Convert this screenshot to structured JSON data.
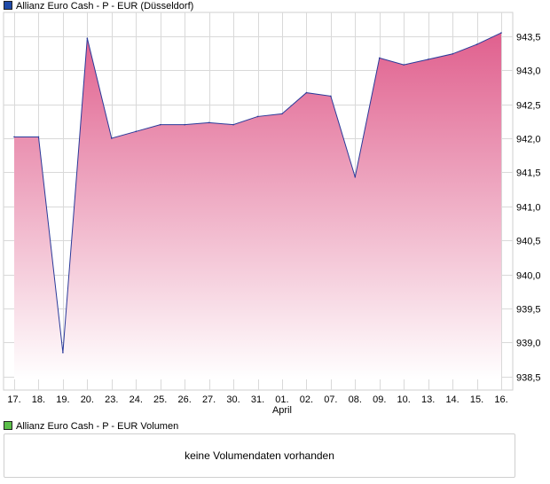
{
  "legend": {
    "main": "Allianz Euro Cash - P - EUR (Düsseldorf)",
    "volume": "Allianz Euro Cash - P - EUR Volumen"
  },
  "volume_panel": {
    "message": "keine Volumendaten vorhanden"
  },
  "colors": {
    "series_line": "#2a3a9a",
    "area_top": "#e0608e",
    "area_bottom": "#ffffff",
    "main_swatch": "#1f4aa8",
    "volume_swatch": "#5cbf4a",
    "grid": "#d9d9d9"
  },
  "chart_data": {
    "type": "area",
    "title": "",
    "xlabel": "",
    "ylabel": "",
    "x": [
      "17.",
      "18.",
      "19.",
      "20.",
      "23.",
      "24.",
      "25.",
      "26.",
      "27.",
      "30.",
      "31.",
      "01.",
      "02.",
      "07.",
      "08.",
      "09.",
      "10.",
      "13.",
      "14.",
      "15.",
      "16."
    ],
    "month_label": {
      "text": "April",
      "under": "01."
    },
    "series": [
      {
        "values": [
          942.02,
          942.02,
          938.85,
          943.47,
          942.0,
          942.1,
          942.2,
          942.2,
          942.23,
          942.2,
          942.32,
          942.36,
          942.67,
          942.62,
          941.43,
          943.18,
          943.08,
          943.16,
          943.24,
          943.38,
          943.55
        ]
      }
    ],
    "ylim": [
      938.3,
      943.85
    ],
    "yticks": [
      "938,5",
      "939,0",
      "939,5",
      "940,0",
      "940,5",
      "941,0",
      "941,5",
      "942,0",
      "942,5",
      "943,0",
      "943,5"
    ],
    "ytick_values": [
      938.5,
      939.0,
      939.5,
      940.0,
      940.5,
      941.0,
      941.5,
      942.0,
      942.5,
      943.0,
      943.5
    ],
    "grid": true,
    "legend_position": "top-left"
  }
}
